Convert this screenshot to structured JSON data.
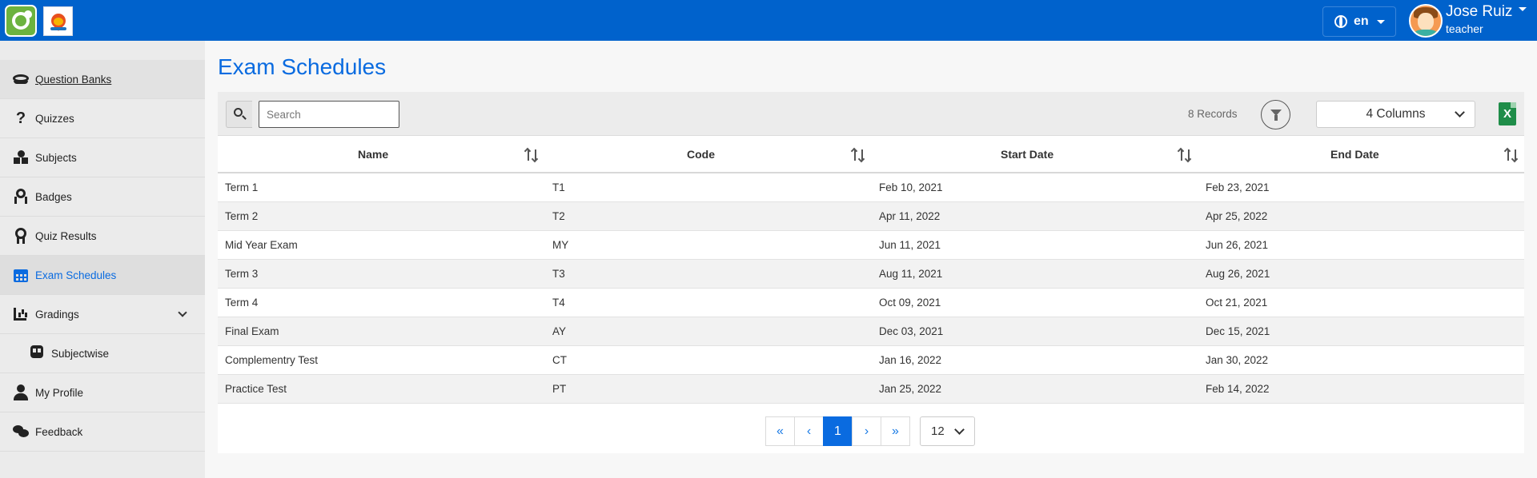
{
  "header": {
    "language": "en",
    "user_name": "Jose Ruiz",
    "user_role": "teacher"
  },
  "sidebar": {
    "items": [
      {
        "label": "Question Banks",
        "icon": "question-bank-icon"
      },
      {
        "label": "Quizzes",
        "icon": "question-mark-icon"
      },
      {
        "label": "Subjects",
        "icon": "shapes-icon"
      },
      {
        "label": "Badges",
        "icon": "ribbon-icon"
      },
      {
        "label": "Quiz Results",
        "icon": "award-icon"
      },
      {
        "label": "Exam Schedules",
        "icon": "calendar-icon"
      },
      {
        "label": "Gradings",
        "icon": "chart-bar-icon"
      },
      {
        "label": "Subjectwise",
        "icon": "train-icon"
      },
      {
        "label": "My Profile",
        "icon": "user-icon"
      },
      {
        "label": "Feedback",
        "icon": "comments-icon"
      }
    ],
    "active": "Exam Schedules"
  },
  "main": {
    "title": "Exam Schedules",
    "search": {
      "placeholder": "Search",
      "value": ""
    },
    "records": "8 Records",
    "columns_select": "4 Columns",
    "excel_label": "X",
    "table": {
      "headers": [
        "Name",
        "Code",
        "Start Date",
        "End Date"
      ],
      "rows": [
        [
          "Term 1",
          "T1",
          "Feb 10, 2021",
          "Feb 23, 2021"
        ],
        [
          "Term 2",
          "T2",
          "Apr 11, 2022",
          "Apr 25, 2022"
        ],
        [
          "Mid Year Exam",
          "MY",
          "Jun 11, 2021",
          "Jun 26, 2021"
        ],
        [
          "Term 3",
          "T3",
          "Aug 11, 2021",
          "Aug 26, 2021"
        ],
        [
          "Term 4",
          "T4",
          "Oct 09, 2021",
          "Oct 21, 2021"
        ],
        [
          "Final Exam",
          "AY",
          "Dec 03, 2021",
          "Dec 15, 2021"
        ],
        [
          "Complementry Test",
          "CT",
          "Jan 16, 2022",
          "Jan 30, 2022"
        ],
        [
          "Practice Test",
          "PT",
          "Jan 25, 2022",
          "Feb 14, 2022"
        ]
      ]
    },
    "pagination": {
      "first": "«",
      "prev": "‹",
      "current": "1",
      "next": "›",
      "last": "»",
      "page_size": "12"
    }
  },
  "colors": {
    "header_bg": "#0062cc",
    "accent": "#0a6be0",
    "excel_green": "#1f8d49"
  }
}
